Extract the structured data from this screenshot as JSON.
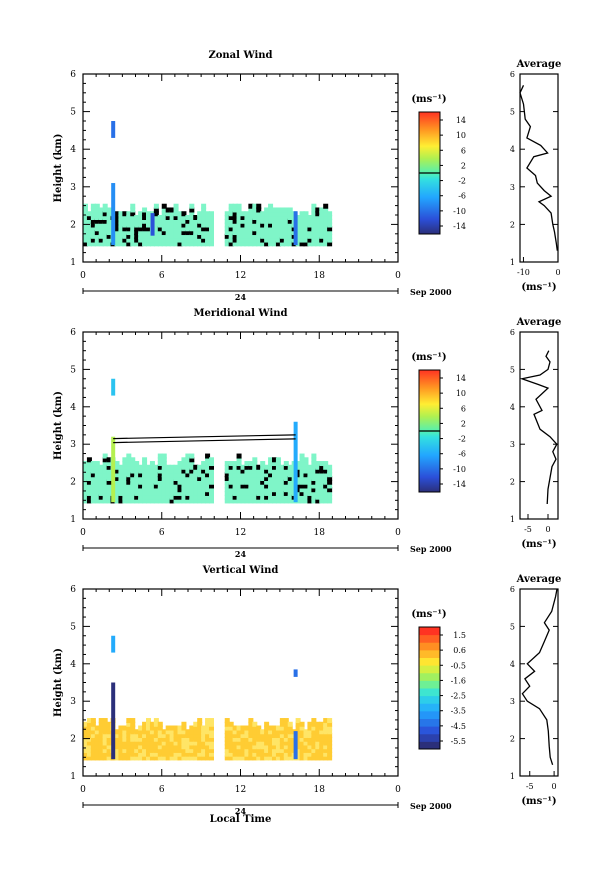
{
  "figure": {
    "xlabel": "Local Time",
    "day_label": "24",
    "date_label": "Sep 2000",
    "colors": {
      "zonal_meridional_fill": "#7ff5c8",
      "vertical_fill_dark": "#ffcc33",
      "vertical_fill_light": "#ffe566"
    }
  },
  "chart_data": [
    {
      "type": "heatmap",
      "title": "Zonal Wind",
      "ylabel": "Height (km)",
      "xlim": [
        0,
        24
      ],
      "x_ticks": [
        "0",
        "6",
        "12",
        "18",
        "0"
      ],
      "ylim": [
        1,
        6
      ],
      "y_ticks": [
        "1",
        "2",
        "3",
        "4",
        "5",
        "6"
      ],
      "colorbar": {
        "label": "(ms⁻¹)",
        "ticks": [
          "14",
          "10",
          "6",
          "2",
          "-2",
          "-6",
          "-10",
          "-14"
        ],
        "min": -16,
        "max": 16
      },
      "bulk_data": {
        "x_start": 0,
        "x_end": 18.7,
        "y_bottom": 1.45,
        "y_top": 2.55,
        "value": -4
      },
      "columns": [
        {
          "x": 2.3,
          "y_bottom": 4.3,
          "y_top": 4.75,
          "value": -10
        },
        {
          "x": 2.3,
          "y_bottom": 1.45,
          "y_top": 3.1,
          "value": -8
        },
        {
          "x": 5.3,
          "y_bottom": 1.7,
          "y_top": 2.3,
          "value": -12
        },
        {
          "x": 16.2,
          "y_bottom": 1.45,
          "y_top": 2.35,
          "value": -10
        }
      ],
      "average": {
        "title": "Average",
        "xlabel": "(ms⁻¹)",
        "xlim": [
          -11,
          0
        ],
        "x_ticks": [
          "-10",
          "0"
        ],
        "ylim": [
          1,
          6
        ],
        "y_ticks": [
          "1",
          "2",
          "3",
          "4",
          "5",
          "6"
        ],
        "profile": [
          {
            "v": -0.2,
            "h": 1.3
          },
          {
            "v": -0.5,
            "h": 1.5
          },
          {
            "v": -1.0,
            "h": 1.8
          },
          {
            "v": -1.5,
            "h": 2.0
          },
          {
            "v": -2.0,
            "h": 2.3
          },
          {
            "v": -4.0,
            "h": 2.5
          },
          {
            "v": -5.5,
            "h": 2.6
          },
          {
            "v": -2.0,
            "h": 2.75
          },
          {
            "v": -4.0,
            "h": 2.9
          },
          {
            "v": -6.0,
            "h": 3.1
          },
          {
            "v": -6.5,
            "h": 3.3
          },
          {
            "v": -9.0,
            "h": 3.5
          },
          {
            "v": -7.0,
            "h": 3.8
          },
          {
            "v": -3.0,
            "h": 3.9
          },
          {
            "v": -5.0,
            "h": 4.1
          },
          {
            "v": -9.0,
            "h": 4.3
          },
          {
            "v": -8.0,
            "h": 4.6
          },
          {
            "v": -9.5,
            "h": 4.8
          },
          {
            "v": -10.0,
            "h": 5.2
          },
          {
            "v": -11.0,
            "h": 5.5
          },
          {
            "v": -10.0,
            "h": 5.7
          }
        ]
      }
    },
    {
      "type": "heatmap",
      "title": "Meridional Wind",
      "ylabel": "Height (km)",
      "xlim": [
        0,
        24
      ],
      "x_ticks": [
        "0",
        "6",
        "12",
        "18",
        "0"
      ],
      "ylim": [
        1,
        6
      ],
      "y_ticks": [
        "1",
        "2",
        "3",
        "4",
        "5",
        "6"
      ],
      "colorbar": {
        "label": "(ms⁻¹)",
        "ticks": [
          "14",
          "10",
          "6",
          "2",
          "-2",
          "-6",
          "-10",
          "-14"
        ],
        "min": -16,
        "max": 16
      },
      "bulk_data": {
        "x_start": 0,
        "x_end": 18.7,
        "y_bottom": 1.45,
        "y_top": 2.7,
        "value": -4
      },
      "columns": [
        {
          "x": 2.3,
          "y_bottom": 4.3,
          "y_top": 4.75,
          "value": -4
        },
        {
          "x": 2.3,
          "y_bottom": 1.45,
          "y_top": 3.2,
          "value": 4
        },
        {
          "x": 16.2,
          "y_bottom": 1.45,
          "y_top": 3.6,
          "value": -6
        }
      ],
      "segment_line": {
        "x": [
          2.3,
          16.2
        ],
        "y": [
          3.15,
          3.25
        ]
      },
      "average": {
        "title": "Average",
        "xlabel": "(ms⁻¹)",
        "xlim": [
          -7,
          2.5
        ],
        "x_ticks": [
          "-5",
          "0"
        ],
        "ylim": [
          1,
          6
        ],
        "y_ticks": [
          "1",
          "2",
          "3",
          "4",
          "5",
          "6"
        ],
        "profile": [
          {
            "v": -0.2,
            "h": 1.4
          },
          {
            "v": 0.0,
            "h": 1.8
          },
          {
            "v": 0.5,
            "h": 2.1
          },
          {
            "v": 1.0,
            "h": 2.4
          },
          {
            "v": 2.0,
            "h": 2.6
          },
          {
            "v": 1.2,
            "h": 2.8
          },
          {
            "v": 2.2,
            "h": 3.0
          },
          {
            "v": 0.5,
            "h": 3.2
          },
          {
            "v": -2.0,
            "h": 3.4
          },
          {
            "v": -3.5,
            "h": 3.8
          },
          {
            "v": -1.5,
            "h": 3.9
          },
          {
            "v": -3.0,
            "h": 4.2
          },
          {
            "v": 0.0,
            "h": 4.5
          },
          {
            "v": -2.5,
            "h": 4.6
          },
          {
            "v": -6.5,
            "h": 4.75
          },
          {
            "v": -2.0,
            "h": 4.85
          },
          {
            "v": 0.0,
            "h": 5.0
          },
          {
            "v": 0.5,
            "h": 5.2
          },
          {
            "v": -0.5,
            "h": 5.35
          },
          {
            "v": 0.2,
            "h": 5.5
          }
        ]
      }
    },
    {
      "type": "heatmap",
      "title": "Vertical Wind",
      "ylabel": "Height (km)",
      "xlim": [
        0,
        24
      ],
      "x_ticks": [
        "0",
        "6",
        "12",
        "18",
        "0"
      ],
      "ylim": [
        1,
        6
      ],
      "y_ticks": [
        "1",
        "2",
        "3",
        "4",
        "5",
        "6"
      ],
      "colorbar": {
        "label": "(ms⁻¹)",
        "ticks": [
          "1.5",
          "0.6",
          "-0.5",
          "-1.6",
          "-2.5",
          "-3.5",
          "-4.5",
          "-5.5"
        ],
        "min": -6,
        "max": 2
      },
      "bulk_data": {
        "x_start": 0,
        "x_end": 18.7,
        "y_bottom": 1.45,
        "y_top": 2.55,
        "value": 0.5
      },
      "columns": [
        {
          "x": 2.3,
          "y_bottom": 4.3,
          "y_top": 4.75,
          "value": -3.5
        },
        {
          "x": 2.3,
          "y_bottom": 1.45,
          "y_top": 3.5,
          "value": -6
        },
        {
          "x": 16.2,
          "y_bottom": 1.45,
          "y_top": 2.2,
          "value": -4.5
        },
        {
          "x": 16.2,
          "y_bottom": 3.65,
          "y_top": 3.85,
          "value": -4.5
        }
      ],
      "average": {
        "title": "Average",
        "xlabel": "(ms⁻¹)",
        "xlim": [
          -7,
          0.8
        ],
        "x_ticks": [
          "-5",
          "0"
        ],
        "ylim": [
          1,
          6
        ],
        "y_ticks": [
          "1",
          "2",
          "3",
          "4",
          "5",
          "6"
        ],
        "profile": [
          {
            "v": -0.3,
            "h": 1.3
          },
          {
            "v": -0.8,
            "h": 1.5
          },
          {
            "v": -1.0,
            "h": 1.8
          },
          {
            "v": -1.2,
            "h": 2.2
          },
          {
            "v": -1.5,
            "h": 2.5
          },
          {
            "v": -3.0,
            "h": 2.8
          },
          {
            "v": -5.5,
            "h": 3.0
          },
          {
            "v": -6.5,
            "h": 3.2
          },
          {
            "v": -5.0,
            "h": 3.4
          },
          {
            "v": -6.0,
            "h": 3.6
          },
          {
            "v": -4.0,
            "h": 3.8
          },
          {
            "v": -5.5,
            "h": 4.0
          },
          {
            "v": -3.0,
            "h": 4.3
          },
          {
            "v": -2.0,
            "h": 4.6
          },
          {
            "v": -1.0,
            "h": 4.9
          },
          {
            "v": -2.0,
            "h": 5.1
          },
          {
            "v": -0.5,
            "h": 5.4
          },
          {
            "v": 0.3,
            "h": 5.8
          },
          {
            "v": 0.6,
            "h": 6.0
          }
        ]
      }
    }
  ]
}
